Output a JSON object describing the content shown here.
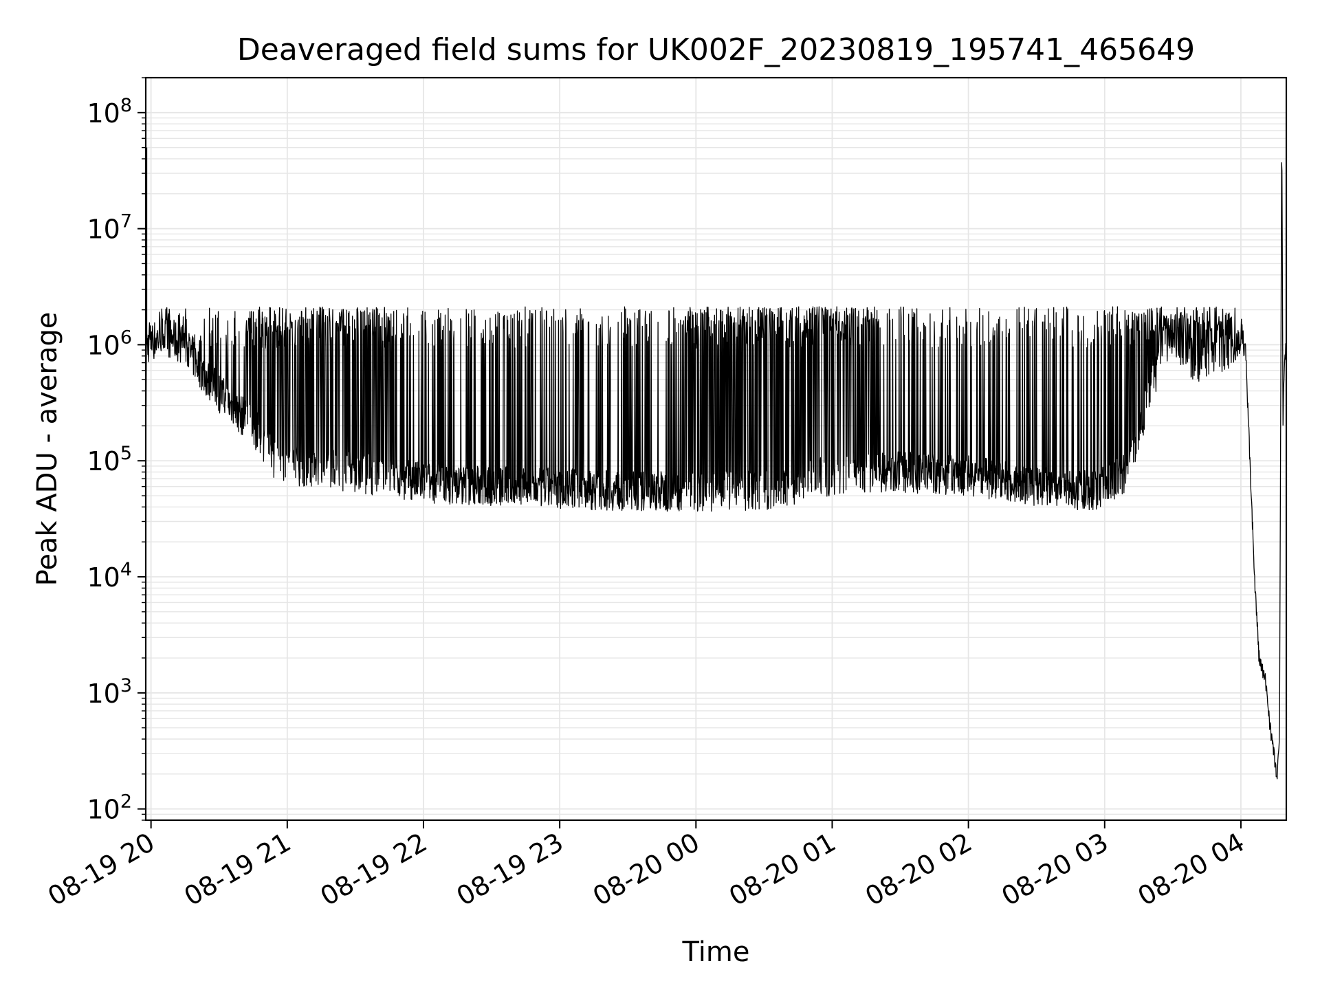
{
  "chart_data": {
    "type": "line",
    "title": "Deaveraged field sums for UK002F_20230819_195741_465649",
    "xlabel": "Time",
    "ylabel": "Peak ADU - average",
    "yscale": "log",
    "ylim": [
      80,
      200000000
    ],
    "xlim": [
      "2023-08-19 19:57:41",
      "2023-08-20 04:20:00"
    ],
    "grid": true,
    "line_color": "#000000",
    "grid_color": "#e6e6e6",
    "x_ticks": [
      {
        "value": "2023-08-19 20:00",
        "label": "08-19 20"
      },
      {
        "value": "2023-08-19 21:00",
        "label": "08-19 21"
      },
      {
        "value": "2023-08-19 22:00",
        "label": "08-19 22"
      },
      {
        "value": "2023-08-19 23:00",
        "label": "08-19 23"
      },
      {
        "value": "2023-08-20 00:00",
        "label": "08-20 00"
      },
      {
        "value": "2023-08-20 01:00",
        "label": "08-20 01"
      },
      {
        "value": "2023-08-20 02:00",
        "label": "08-20 02"
      },
      {
        "value": "2023-08-20 03:00",
        "label": "08-20 03"
      },
      {
        "value": "2023-08-20 04:00",
        "label": "08-20 04"
      }
    ],
    "y_ticks": [
      {
        "value": 100,
        "base": "10",
        "exp": "2"
      },
      {
        "value": 1000,
        "base": "10",
        "exp": "3"
      },
      {
        "value": 10000,
        "base": "10",
        "exp": "4"
      },
      {
        "value": 100000,
        "base": "10",
        "exp": "5"
      },
      {
        "value": 1000000,
        "base": "10",
        "exp": "6"
      },
      {
        "value": 10000000,
        "base": "10",
        "exp": "7"
      },
      {
        "value": 100000000,
        "base": "10",
        "exp": "8"
      }
    ],
    "series": [
      {
        "style": "baseline-trend",
        "points": [
          [
            "2023-08-19 19:57:41",
            150000
          ],
          [
            "2023-08-19 19:58",
            1000000
          ],
          [
            "2023-08-19 20:05",
            1200000
          ],
          [
            "2023-08-19 20:15",
            1000000
          ],
          [
            "2023-08-19 20:25",
            500000
          ],
          [
            "2023-08-19 20:35",
            300000
          ],
          [
            "2023-08-19 20:45",
            200000
          ],
          [
            "2023-08-19 20:55",
            100000
          ],
          [
            "2023-08-19 21:05",
            90000
          ],
          [
            "2023-08-19 21:30",
            80000
          ],
          [
            "2023-08-19 22:00",
            65000
          ],
          [
            "2023-08-19 22:30",
            60000
          ],
          [
            "2023-08-19 23:00",
            58000
          ],
          [
            "2023-08-19 23:30",
            55000
          ],
          [
            "2023-08-20 00:00",
            55000
          ],
          [
            "2023-08-20 00:30",
            55000
          ],
          [
            "2023-08-20 01:00",
            75000
          ],
          [
            "2023-08-20 01:30",
            80000
          ],
          [
            "2023-08-20 02:00",
            75000
          ],
          [
            "2023-08-20 02:30",
            60000
          ],
          [
            "2023-08-20 02:55",
            55000
          ],
          [
            "2023-08-20 03:10",
            80000
          ],
          [
            "2023-08-20 03:20",
            400000
          ],
          [
            "2023-08-20 03:30",
            1200000
          ],
          [
            "2023-08-20 03:40",
            700000
          ],
          [
            "2023-08-20 03:50",
            800000
          ],
          [
            "2023-08-20 04:00",
            1000000
          ],
          [
            "2023-08-20 04:02",
            900000
          ],
          [
            "2023-08-20 04:04",
            100000
          ],
          [
            "2023-08-20 04:06",
            10000
          ],
          [
            "2023-08-20 04:08",
            2000
          ],
          [
            "2023-08-20 04:11",
            1200
          ],
          [
            "2023-08-20 04:13",
            500
          ],
          [
            "2023-08-20 04:15",
            250
          ],
          [
            "2023-08-20 04:16",
            180
          ],
          [
            "2023-08-20 04:17",
            400
          ],
          [
            "2023-08-20 04:18",
            100000000
          ],
          [
            "2023-08-20 04:18:30",
            220000
          ],
          [
            "2023-08-20 04:19",
            600000
          ],
          [
            "2023-08-20 04:20",
            1000000
          ]
        ]
      },
      {
        "style": "spikes",
        "peak": 1700000,
        "note_dense_windows": [
          [
            "2023-08-19 20:40",
            "2023-08-19 21:45"
          ],
          [
            "2023-08-19 23:55",
            "2023-08-20 01:20"
          ],
          [
            "2023-08-20 03:10",
            "2023-08-20 03:55"
          ]
        ],
        "extreme_points": [
          [
            "2023-08-19 19:58",
            50000000
          ],
          [
            "2023-08-20 04:18",
            100000000
          ]
        ]
      }
    ]
  }
}
